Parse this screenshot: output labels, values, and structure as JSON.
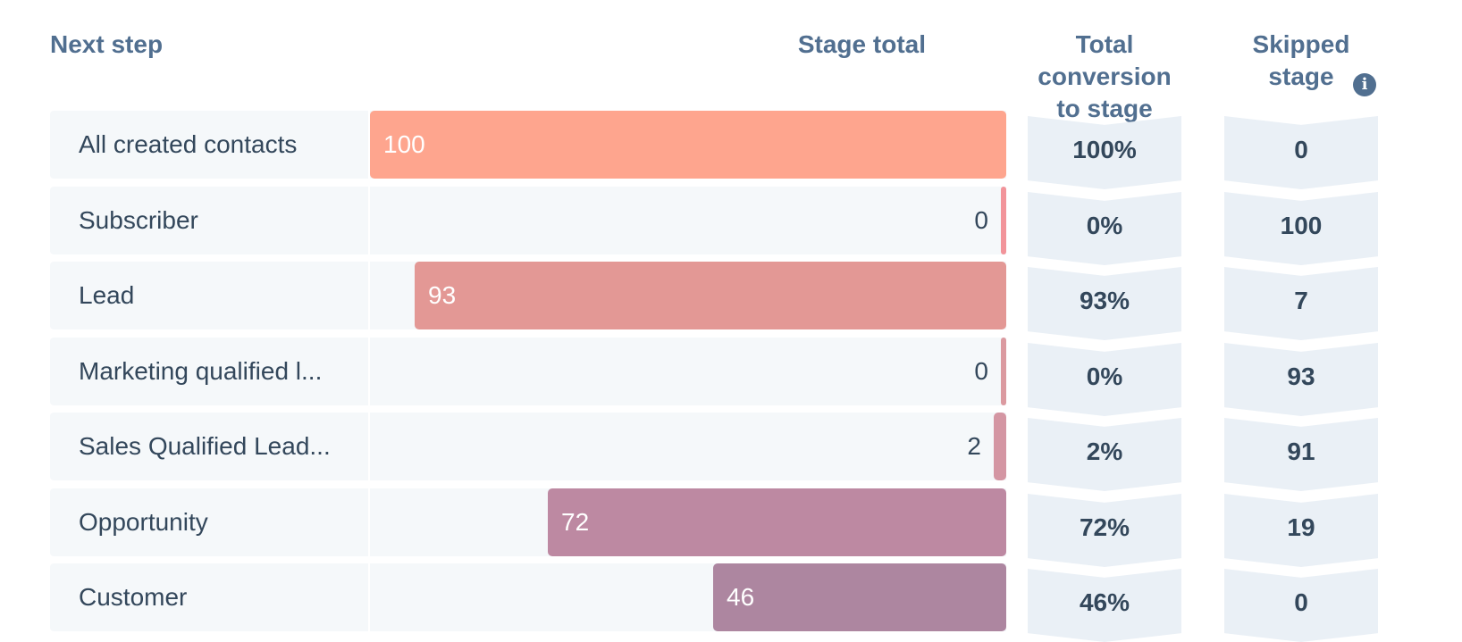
{
  "headers": {
    "next_step": "Next step",
    "stage_total": "Stage total",
    "total_conversion": "Total conversion to stage",
    "skipped_stage": "Skipped stage",
    "info_icon": "info-icon"
  },
  "colors": {
    "header_text": "#516f90",
    "body_text": "#33475b",
    "row_background": "#f5f8fa",
    "chevron_background": "#eaf0f6"
  },
  "rows": [
    {
      "label": "All created contacts",
      "stage_total": "100",
      "value": 100,
      "bar_color": "#fea58e",
      "conversion": "100%",
      "skipped": "0"
    },
    {
      "label": "Subscriber",
      "stage_total": "0",
      "value": 0,
      "bar_color": "#f2949a",
      "conversion": "0%",
      "skipped": "100"
    },
    {
      "label": "Lead",
      "stage_total": "93",
      "value": 93,
      "bar_color": "#e39895",
      "conversion": "93%",
      "skipped": "7"
    },
    {
      "label": "Marketing qualified l...",
      "stage_total": "0",
      "value": 0,
      "bar_color": "#db9aa0",
      "conversion": "0%",
      "skipped": "93"
    },
    {
      "label": "Sales Qualified Lead...",
      "stage_total": "2",
      "value": 2,
      "bar_color": "#d496a3",
      "conversion": "2%",
      "skipped": "91"
    },
    {
      "label": "Opportunity",
      "stage_total": "72",
      "value": 72,
      "bar_color": "#bd89a2",
      "conversion": "72%",
      "skipped": "19"
    },
    {
      "label": "Customer",
      "stage_total": "46",
      "value": 46,
      "bar_color": "#ad86a0",
      "conversion": "46%",
      "skipped": "0"
    }
  ],
  "max_value": 100
}
